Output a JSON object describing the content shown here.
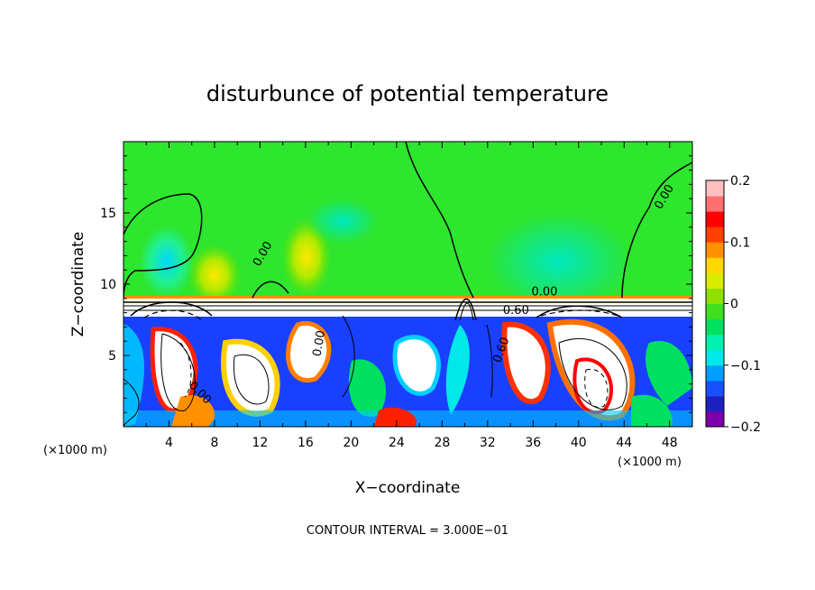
{
  "chart_data": {
    "type": "heatmap",
    "title": "disturbunce of potential temperature",
    "xlabel": "X−coordinate",
    "ylabel": "Z−coordinate",
    "x_unit": "(×1000 m)",
    "x_unit_right": "(×1000 m)",
    "xlim": [
      0,
      50
    ],
    "ylim": [
      0,
      20
    ],
    "x_ticks": [
      4,
      8,
      12,
      16,
      20,
      24,
      28,
      32,
      36,
      40,
      44,
      48
    ],
    "x_tick_labels": [
      "4",
      "8",
      "12",
      "16",
      "20",
      "24",
      "28",
      "32",
      "36",
      "40",
      "44",
      "48"
    ],
    "y_ticks": [
      5,
      10,
      15
    ],
    "y_tick_labels": [
      "5",
      "10",
      "15"
    ],
    "colorbar": {
      "range": [
        -0.2,
        0.2
      ],
      "ticks": [
        0.2,
        0.1,
        0,
        -0.1,
        -0.2
      ],
      "tick_labels": [
        "0.2",
        "0.1",
        "0",
        "−0.1",
        "−0.2"
      ],
      "colors": [
        "#7a00a8",
        "#2020c0",
        "#1850ff",
        "#00a0ff",
        "#00e8e8",
        "#00f0b0",
        "#00e060",
        "#40e020",
        "#90e000",
        "#d8ec00",
        "#ffd800",
        "#ff9000",
        "#ff4000",
        "#ff0000",
        "#ff7070",
        "#ffc0c0"
      ]
    },
    "contour_labels": [
      {
        "text": "0.00",
        "x": 12.5,
        "y": 12.0,
        "angle": -60
      },
      {
        "text": "0.00",
        "x": 47.8,
        "y": 16.0,
        "angle": -60
      },
      {
        "text": "0.00",
        "x": 37.0,
        "y": 9.2,
        "angle": 0
      },
      {
        "text": "0.60",
        "x": 34.5,
        "y": 7.9,
        "angle": 0
      },
      {
        "text": "0.00",
        "x": 17.5,
        "y": 5.8,
        "angle": -80
      },
      {
        "text": "0.60",
        "x": 33.5,
        "y": 5.3,
        "angle": -70
      },
      {
        "text": "0.00",
        "x": 6.5,
        "y": 2.2,
        "angle": 45
      }
    ],
    "contour_interval_text": "CONTOUR INTERVAL = 3.000E−01",
    "grid": false,
    "legend": "colorbar-right"
  }
}
